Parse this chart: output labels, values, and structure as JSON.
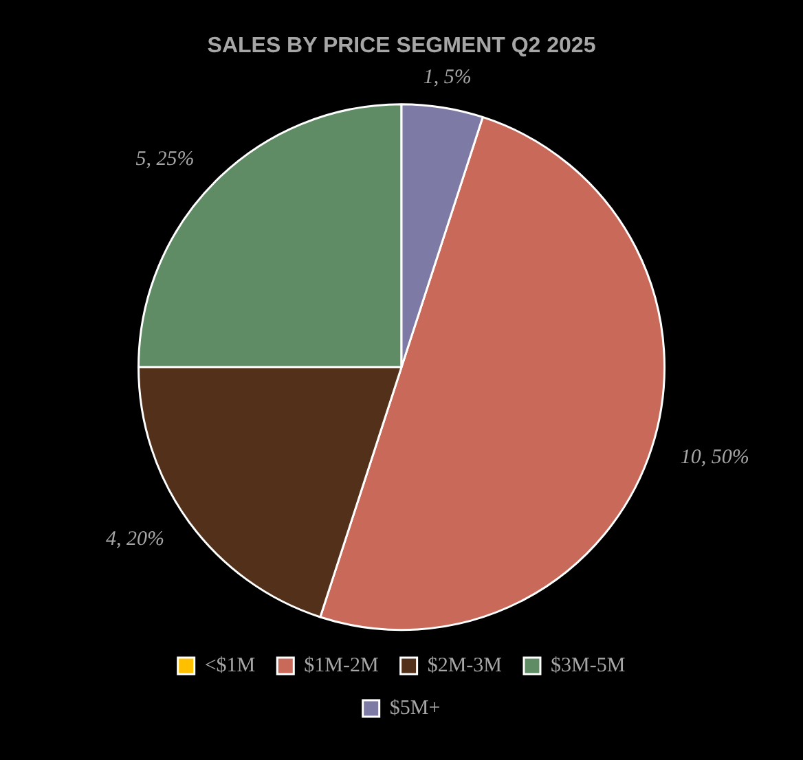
{
  "chart_data": {
    "type": "pie",
    "title": "SALES BY PRICE SEGMENT Q2 2025",
    "categories": [
      "<$1M",
      "$1M-2M",
      "$2M-3M",
      "$3M-5M",
      "$5M+"
    ],
    "values": [
      0,
      10,
      4,
      5,
      1
    ],
    "colors": [
      "#ffc000",
      "#c8695a",
      "#52301a",
      "#5f8c64",
      "#7e7aa6"
    ],
    "value_labels": [
      null,
      "10, 50%",
      "4, 20%",
      "5, 25%",
      "1, 5%"
    ],
    "legend": "bottom"
  }
}
